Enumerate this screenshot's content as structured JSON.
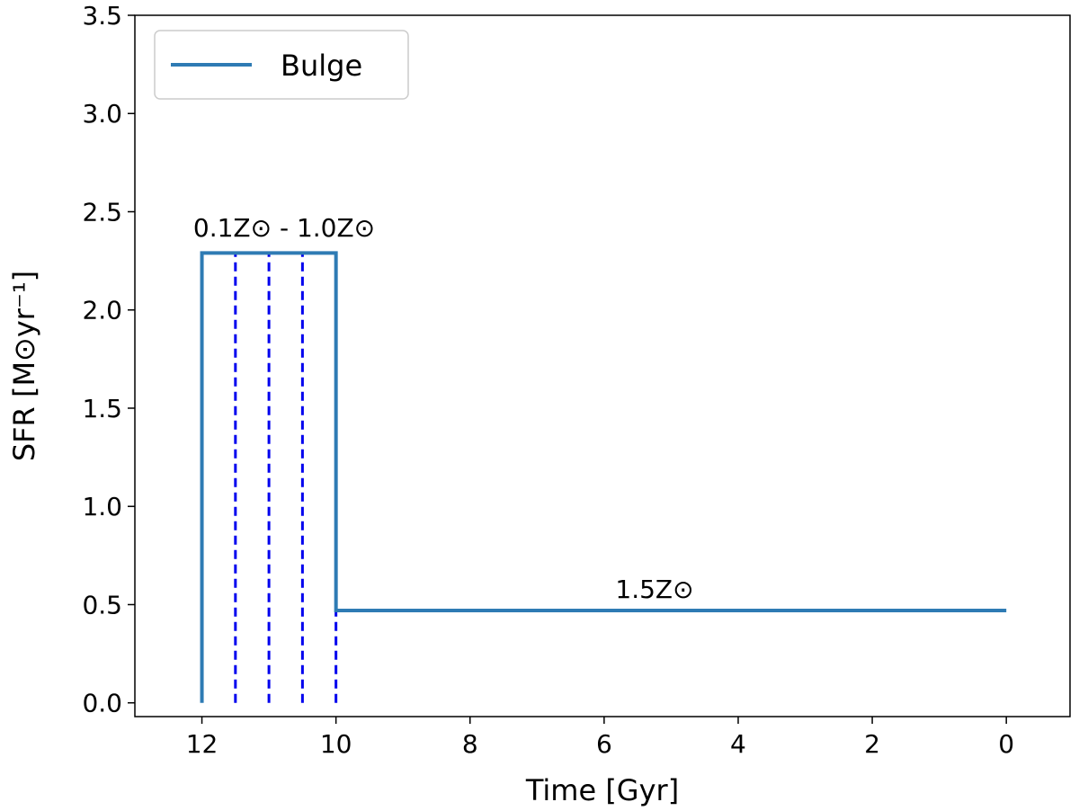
{
  "chart_data": {
    "type": "line",
    "xlabel": "Time [Gyr]",
    "ylabel": "SFR [M⊙yr⁻¹]",
    "xlim": [
      13,
      -0.95
    ],
    "ylim": [
      -0.07,
      3.5
    ],
    "xticks": [
      12,
      10,
      8,
      6,
      4,
      2,
      0
    ],
    "yticks": [
      {
        "value": 0,
        "label": "0.0"
      },
      0.5,
      {
        "value": 1,
        "label": "1.0"
      },
      1.5,
      {
        "value": 2,
        "label": "2.0"
      },
      2.5,
      {
        "value": 3,
        "label": "3.0"
      },
      3.5
    ],
    "series": [
      {
        "name": "Bulge",
        "color": "#2e7bb4",
        "x": [
          12,
          12,
          10,
          10,
          0
        ],
        "values": [
          0,
          2.29,
          2.29,
          0.47,
          0.47
        ]
      }
    ],
    "vlines": {
      "x": [
        11.5,
        11,
        10.5,
        10
      ],
      "ymax": 2.29,
      "color": "#0000ee"
    },
    "annotations": [
      "0.1Z⊙ - 1.0Z⊙",
      "1.5Z⊙"
    ],
    "legend": "upper left"
  }
}
